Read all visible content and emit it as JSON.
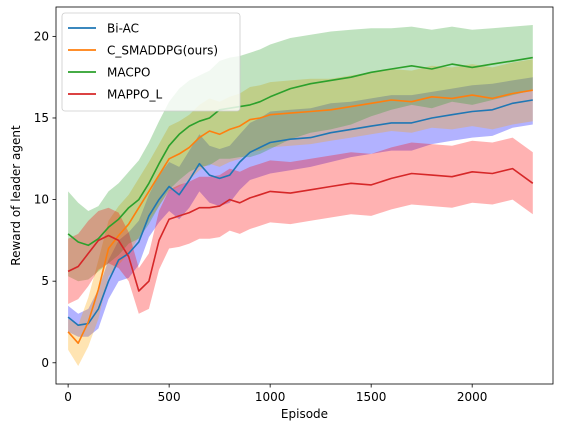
{
  "chart_data": {
    "type": "line",
    "xlabel": "Episode",
    "ylabel": "Reward of leader agent",
    "xlim": [
      -60,
      2400
    ],
    "ylim": [
      -1.3,
      21.8
    ],
    "xticks": [
      0,
      500,
      1000,
      1500,
      2000
    ],
    "yticks": [
      0,
      5,
      10,
      15,
      20
    ],
    "grid": false,
    "legend_position": "upper-left",
    "series": [
      {
        "name": "Bi-AC",
        "color": "#1f77b4",
        "band_color": "#0000ff",
        "x": [
          0,
          50,
          100,
          150,
          200,
          250,
          300,
          350,
          400,
          450,
          500,
          550,
          600,
          650,
          700,
          750,
          800,
          850,
          900,
          950,
          1000,
          1100,
          1200,
          1300,
          1400,
          1500,
          1600,
          1700,
          1800,
          1900,
          2000,
          2100,
          2200,
          2300
        ],
        "y": [
          2.8,
          2.3,
          2.4,
          3.3,
          5.0,
          6.3,
          6.7,
          7.4,
          9.0,
          10.0,
          10.8,
          10.3,
          11.2,
          12.2,
          11.5,
          11.3,
          11.5,
          12.3,
          12.9,
          13.2,
          13.5,
          13.7,
          13.8,
          14.1,
          14.3,
          14.5,
          14.7,
          14.7,
          15.0,
          15.2,
          15.4,
          15.5,
          15.9,
          16.1
        ],
        "upper": [
          3.5,
          3.0,
          3.3,
          4.5,
          6.3,
          7.5,
          8.0,
          8.7,
          10.3,
          11.5,
          12.3,
          12.0,
          13.0,
          14.0,
          13.3,
          13.1,
          13.3,
          14.0,
          14.7,
          15.0,
          15.4,
          15.5,
          15.6,
          15.9,
          16.0,
          16.2,
          16.4,
          16.4,
          16.6,
          16.8,
          17.0,
          17.1,
          17.3,
          17.5
        ],
        "lower": [
          1.9,
          1.6,
          1.6,
          2.1,
          3.9,
          5.0,
          5.2,
          6.0,
          7.7,
          8.6,
          9.3,
          8.8,
          9.5,
          10.5,
          9.8,
          9.6,
          9.8,
          10.6,
          11.2,
          11.4,
          11.6,
          11.8,
          12.0,
          12.3,
          12.6,
          12.8,
          13.0,
          13.0,
          13.4,
          13.6,
          13.8,
          13.9,
          14.4,
          14.6
        ]
      },
      {
        "name": "C_SMADDPG(ours)",
        "color": "#ff7f0e",
        "band_color": "#ffa500",
        "x": [
          0,
          50,
          100,
          150,
          200,
          250,
          300,
          350,
          400,
          450,
          500,
          550,
          600,
          650,
          700,
          750,
          800,
          850,
          900,
          950,
          1000,
          1100,
          1200,
          1300,
          1400,
          1500,
          1600,
          1700,
          1800,
          1900,
          2000,
          2100,
          2200,
          2300
        ],
        "y": [
          1.9,
          1.2,
          2.5,
          4.5,
          7.0,
          7.8,
          8.5,
          9.5,
          10.5,
          11.5,
          12.5,
          12.8,
          13.2,
          13.8,
          14.2,
          14.0,
          14.3,
          14.5,
          14.9,
          15.0,
          15.2,
          15.3,
          15.4,
          15.5,
          15.7,
          15.9,
          16.1,
          16.0,
          16.3,
          16.2,
          16.4,
          16.2,
          16.5,
          16.7
        ],
        "upper": [
          2.7,
          2.3,
          4.0,
          6.3,
          8.7,
          9.6,
          10.3,
          11.3,
          12.3,
          13.4,
          14.5,
          14.8,
          15.2,
          15.8,
          16.2,
          16.0,
          16.3,
          16.5,
          16.9,
          17.0,
          17.2,
          17.3,
          17.4,
          17.4,
          17.6,
          17.8,
          18.0,
          17.9,
          18.2,
          18.1,
          18.3,
          18.1,
          18.4,
          18.6
        ],
        "lower": [
          0.8,
          -0.2,
          1.0,
          2.7,
          5.3,
          6.0,
          6.7,
          7.7,
          8.7,
          9.6,
          10.5,
          10.8,
          11.2,
          11.8,
          12.2,
          12.0,
          12.3,
          12.5,
          12.9,
          13.0,
          13.2,
          13.3,
          13.4,
          13.6,
          13.8,
          14.0,
          14.2,
          14.1,
          14.4,
          14.3,
          14.5,
          14.3,
          14.6,
          14.8
        ]
      },
      {
        "name": "MACPO",
        "color": "#2ca02c",
        "band_color": "#2ca02c",
        "x": [
          0,
          50,
          100,
          150,
          200,
          250,
          300,
          350,
          400,
          450,
          500,
          550,
          600,
          650,
          700,
          750,
          800,
          850,
          900,
          950,
          1000,
          1100,
          1200,
          1300,
          1400,
          1500,
          1600,
          1700,
          1800,
          1900,
          2000,
          2100,
          2200,
          2300
        ],
        "y": [
          7.9,
          7.4,
          7.2,
          7.6,
          8.3,
          8.8,
          9.5,
          10.0,
          11.0,
          12.2,
          13.3,
          14.0,
          14.5,
          14.8,
          15.0,
          15.5,
          15.6,
          15.7,
          15.8,
          16.0,
          16.3,
          16.8,
          17.1,
          17.3,
          17.5,
          17.8,
          18.0,
          18.2,
          18.0,
          18.3,
          18.1,
          18.3,
          18.5,
          18.7
        ],
        "upper": [
          10.5,
          9.8,
          9.3,
          9.6,
          10.5,
          11.0,
          11.7,
          12.4,
          13.5,
          14.8,
          16.0,
          16.8,
          17.3,
          17.6,
          17.9,
          18.5,
          18.7,
          18.8,
          19.0,
          19.2,
          19.5,
          19.9,
          20.1,
          20.3,
          20.4,
          20.5,
          20.5,
          20.6,
          20.4,
          20.6,
          20.4,
          20.5,
          20.6,
          20.7
        ],
        "lower": [
          5.3,
          5.0,
          5.1,
          5.6,
          6.1,
          6.6,
          7.3,
          7.6,
          8.5,
          9.6,
          10.6,
          11.2,
          11.7,
          12.0,
          12.1,
          12.5,
          12.5,
          12.6,
          12.6,
          12.8,
          13.1,
          13.7,
          14.1,
          14.3,
          14.6,
          15.1,
          15.5,
          15.8,
          15.6,
          16.0,
          15.8,
          16.1,
          16.4,
          16.7
        ]
      },
      {
        "name": "MAPPO_L",
        "color": "#d62728",
        "band_color": "#ff0000",
        "x": [
          0,
          50,
          100,
          150,
          200,
          250,
          300,
          350,
          400,
          450,
          500,
          550,
          600,
          650,
          700,
          750,
          800,
          850,
          900,
          950,
          1000,
          1100,
          1200,
          1300,
          1400,
          1500,
          1600,
          1700,
          1800,
          1900,
          2000,
          2100,
          2200,
          2300
        ],
        "y": [
          5.6,
          5.9,
          6.7,
          7.5,
          7.8,
          7.5,
          6.5,
          4.4,
          5.0,
          7.5,
          8.8,
          9.0,
          9.2,
          9.5,
          9.5,
          9.6,
          10.0,
          9.8,
          10.1,
          10.3,
          10.5,
          10.4,
          10.6,
          10.8,
          11.0,
          10.9,
          11.3,
          11.6,
          11.5,
          11.4,
          11.7,
          11.6,
          11.9,
          11.0
        ],
        "upper": [
          7.6,
          7.9,
          8.7,
          9.3,
          9.5,
          9.2,
          8.0,
          5.8,
          6.7,
          9.3,
          10.6,
          10.9,
          11.1,
          11.4,
          11.4,
          11.5,
          11.9,
          11.7,
          12.0,
          12.2,
          12.4,
          12.3,
          12.5,
          12.7,
          12.9,
          12.8,
          13.2,
          13.5,
          13.4,
          13.3,
          13.6,
          13.5,
          13.8,
          12.9
        ],
        "lower": [
          3.6,
          3.9,
          4.7,
          5.7,
          6.1,
          5.8,
          5.0,
          3.0,
          3.3,
          5.7,
          7.0,
          7.1,
          7.3,
          7.6,
          7.6,
          7.7,
          8.1,
          7.9,
          8.2,
          8.4,
          8.6,
          8.5,
          8.7,
          8.9,
          9.1,
          9.0,
          9.4,
          9.7,
          9.6,
          9.5,
          9.8,
          9.7,
          10.0,
          9.1
        ]
      }
    ]
  }
}
